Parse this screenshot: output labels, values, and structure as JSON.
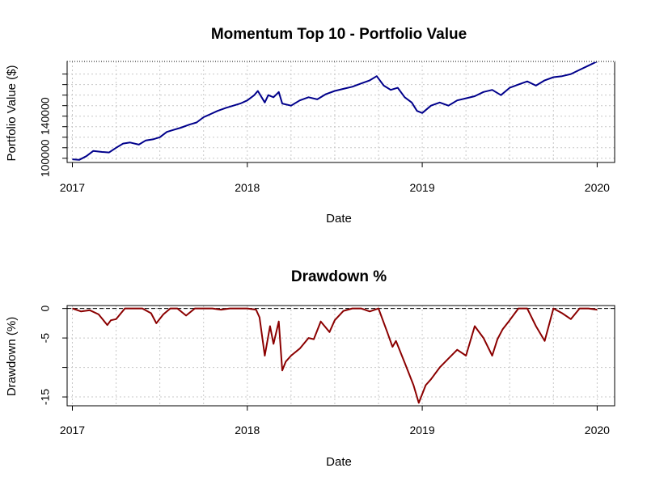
{
  "chart_data": [
    {
      "id": "value",
      "type": "line",
      "title": "Momentum Top 10 - Portfolio Value",
      "xlabel": "Date",
      "ylabel": "Portfolio Value ($)",
      "xlim": [
        2016.97,
        2020.1
      ],
      "ylim": [
        96000,
        192000
      ],
      "xticks": [
        2017,
        2018,
        2019,
        2020
      ],
      "xtick_labels": [
        "2017",
        "2018",
        "2019",
        "2020"
      ],
      "yticks_major": [
        100000,
        140000
      ],
      "ytick_labels": [
        "100000",
        "140000"
      ],
      "yticks_minor": [
        110000,
        120000,
        130000,
        150000,
        160000,
        170000,
        180000
      ],
      "grid": true,
      "top_border": "dotted",
      "series": [
        {
          "color": "#00008B",
          "x": [
            2017.0,
            2017.04,
            2017.08,
            2017.12,
            2017.17,
            2017.21,
            2017.25,
            2017.29,
            2017.33,
            2017.38,
            2017.42,
            2017.46,
            2017.5,
            2017.54,
            2017.58,
            2017.62,
            2017.67,
            2017.71,
            2017.75,
            2017.79,
            2017.83,
            2017.88,
            2017.92,
            2017.96,
            2018.0,
            2018.04,
            2018.06,
            2018.1,
            2018.12,
            2018.15,
            2018.18,
            2018.2,
            2018.25,
            2018.3,
            2018.35,
            2018.4,
            2018.45,
            2018.5,
            2018.55,
            2018.6,
            2018.65,
            2018.7,
            2018.74,
            2018.78,
            2018.82,
            2018.86,
            2018.9,
            2018.94,
            2018.97,
            2019.0,
            2019.05,
            2019.1,
            2019.15,
            2019.2,
            2019.25,
            2019.3,
            2019.35,
            2019.4,
            2019.45,
            2019.5,
            2019.55,
            2019.6,
            2019.65,
            2019.7,
            2019.75,
            2019.8,
            2019.85,
            2019.9,
            2019.95,
            2020.0
          ],
          "y": [
            99000,
            98500,
            102000,
            107000,
            106000,
            105500,
            110000,
            114000,
            115000,
            113000,
            117000,
            118000,
            120000,
            125000,
            127000,
            129000,
            132000,
            134000,
            139000,
            142000,
            145000,
            148000,
            150000,
            152000,
            155000,
            160000,
            164000,
            153000,
            160000,
            158000,
            163000,
            152000,
            150000,
            155000,
            158000,
            156000,
            161000,
            164000,
            166000,
            168000,
            171000,
            174000,
            178000,
            169000,
            165000,
            167000,
            158000,
            153000,
            145000,
            143000,
            150000,
            153000,
            150000,
            155000,
            157000,
            159000,
            163000,
            165000,
            160000,
            167000,
            170000,
            173000,
            169000,
            174000,
            177000,
            178000,
            180000,
            184000,
            188000,
            192000
          ]
        }
      ]
    },
    {
      "id": "drawdown",
      "type": "line",
      "title": "Drawdown %",
      "xlabel": "Date",
      "ylabel": "Drawdown (%)",
      "xlim": [
        2016.97,
        2020.1
      ],
      "ylim": [
        -16.5,
        0.5
      ],
      "xticks": [
        2017,
        2018,
        2019,
        2020
      ],
      "xtick_labels": [
        "2017",
        "2018",
        "2019",
        "2020"
      ],
      "yticks_major": [
        0,
        -5,
        -15
      ],
      "ytick_labels": [
        "0",
        "-5",
        "-15"
      ],
      "yticks_minor": [
        -10
      ],
      "grid": true,
      "reference_line": {
        "y": 0,
        "style": "dashed"
      },
      "series": [
        {
          "color": "#8B0000",
          "x": [
            2017.0,
            2017.05,
            2017.1,
            2017.15,
            2017.2,
            2017.22,
            2017.25,
            2017.3,
            2017.35,
            2017.4,
            2017.45,
            2017.48,
            2017.52,
            2017.56,
            2017.6,
            2017.65,
            2017.7,
            2017.75,
            2017.8,
            2017.85,
            2017.9,
            2017.95,
            2018.0,
            2018.05,
            2018.07,
            2018.1,
            2018.13,
            2018.15,
            2018.18,
            2018.2,
            2018.22,
            2018.25,
            2018.3,
            2018.35,
            2018.38,
            2018.42,
            2018.47,
            2018.5,
            2018.55,
            2018.6,
            2018.65,
            2018.7,
            2018.75,
            2018.8,
            2018.83,
            2018.85,
            2018.9,
            2018.95,
            2018.98,
            2019.02,
            2019.05,
            2019.1,
            2019.15,
            2019.2,
            2019.25,
            2019.3,
            2019.35,
            2019.4,
            2019.43,
            2019.46,
            2019.5,
            2019.55,
            2019.6,
            2019.65,
            2019.7,
            2019.75,
            2019.8,
            2019.85,
            2019.9,
            2019.95,
            2020.0
          ],
          "y": [
            0,
            -0.5,
            -0.3,
            -1.0,
            -2.8,
            -2.0,
            -1.8,
            0,
            0,
            0,
            -0.8,
            -2.5,
            -1.0,
            0,
            0,
            -1.2,
            0,
            0,
            0,
            -0.2,
            0,
            0,
            0,
            -0.2,
            -1.5,
            -8.0,
            -3.0,
            -6.0,
            -2.2,
            -10.5,
            -9.0,
            -8.0,
            -6.8,
            -5.0,
            -5.2,
            -2.2,
            -4.0,
            -2.0,
            -0.4,
            0,
            0,
            -0.5,
            0,
            -4.0,
            -6.5,
            -5.5,
            -9.2,
            -13.0,
            -16.0,
            -13.0,
            -12.0,
            -10.0,
            -8.5,
            -7.0,
            -8.0,
            -3.0,
            -5.0,
            -8.0,
            -5.2,
            -3.5,
            -2.0,
            0,
            0,
            -3.0,
            -5.5,
            0,
            -0.8,
            -1.8,
            0,
            0,
            -0.2
          ]
        }
      ]
    }
  ]
}
